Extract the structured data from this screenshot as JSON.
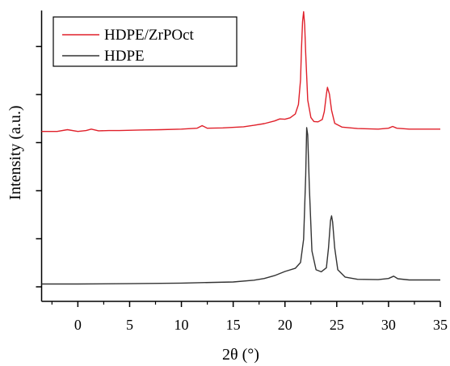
{
  "chart_data": {
    "type": "line",
    "xlabel": "2θ (°)",
    "ylabel": "Intensity (a.u.)",
    "xlim": [
      -3.5,
      35
    ],
    "xticks": [
      0,
      5,
      10,
      15,
      20,
      25,
      30,
      35
    ],
    "xtick_labels": [
      "0",
      "5",
      "10",
      "15",
      "20",
      "25",
      "30",
      "35"
    ],
    "yticks_count": 6,
    "y_tick_labels_shown": false,
    "ylim": [
      0,
      100
    ],
    "grid": false,
    "legend_position": "top-left",
    "series": [
      {
        "name": "HDPE/ZrPOct",
        "color": "#e0202a",
        "points": [
          [
            -3.5,
            57.2
          ],
          [
            -2.0,
            57.2
          ],
          [
            -1.0,
            57.8
          ],
          [
            0.0,
            57.2
          ],
          [
            0.8,
            57.5
          ],
          [
            1.3,
            58.0
          ],
          [
            2.0,
            57.4
          ],
          [
            3.0,
            57.5
          ],
          [
            4.0,
            57.5
          ],
          [
            6.0,
            57.7
          ],
          [
            8.0,
            57.8
          ],
          [
            10.0,
            58.0
          ],
          [
            11.5,
            58.3
          ],
          [
            12.0,
            59.2
          ],
          [
            12.5,
            58.3
          ],
          [
            14.0,
            58.4
          ],
          [
            16.0,
            58.8
          ],
          [
            17.0,
            59.3
          ],
          [
            18.0,
            59.9
          ],
          [
            19.0,
            60.8
          ],
          [
            19.5,
            61.5
          ],
          [
            20.0,
            61.4
          ],
          [
            20.5,
            61.9
          ],
          [
            21.0,
            63.2
          ],
          [
            21.3,
            66.5
          ],
          [
            21.5,
            75.0
          ],
          [
            21.6,
            86.0
          ],
          [
            21.7,
            95.0
          ],
          [
            21.8,
            98.5
          ],
          [
            21.9,
            94.0
          ],
          [
            22.0,
            84.0
          ],
          [
            22.2,
            68.0
          ],
          [
            22.5,
            62.0
          ],
          [
            22.8,
            60.6
          ],
          [
            23.2,
            60.5
          ],
          [
            23.6,
            61.3
          ],
          [
            23.8,
            64.0
          ],
          [
            24.0,
            70.0
          ],
          [
            24.1,
            72.4
          ],
          [
            24.3,
            70.0
          ],
          [
            24.5,
            64.5
          ],
          [
            24.8,
            60.0
          ],
          [
            25.5,
            58.7
          ],
          [
            27.0,
            58.2
          ],
          [
            29.0,
            58.0
          ],
          [
            30.0,
            58.3
          ],
          [
            30.4,
            58.9
          ],
          [
            30.8,
            58.3
          ],
          [
            32.0,
            58.0
          ],
          [
            35.0,
            58.0
          ]
        ]
      },
      {
        "name": "HDPE",
        "color": "#333333",
        "points": [
          [
            -3.5,
            4.6
          ],
          [
            0.0,
            4.6
          ],
          [
            5.0,
            4.7
          ],
          [
            10.0,
            4.9
          ],
          [
            15.0,
            5.3
          ],
          [
            17.0,
            5.9
          ],
          [
            18.0,
            6.5
          ],
          [
            19.0,
            7.5
          ],
          [
            20.0,
            8.9
          ],
          [
            21.0,
            10.0
          ],
          [
            21.5,
            12.0
          ],
          [
            21.8,
            20.0
          ],
          [
            22.0,
            42.0
          ],
          [
            22.1,
            58.5
          ],
          [
            22.2,
            56.0
          ],
          [
            22.35,
            38.0
          ],
          [
            22.6,
            16.0
          ],
          [
            23.0,
            9.5
          ],
          [
            23.5,
            8.8
          ],
          [
            24.0,
            10.2
          ],
          [
            24.2,
            17.0
          ],
          [
            24.4,
            26.5
          ],
          [
            24.5,
            28.1
          ],
          [
            24.6,
            26.0
          ],
          [
            24.8,
            17.0
          ],
          [
            25.1,
            9.5
          ],
          [
            25.8,
            7.0
          ],
          [
            27.0,
            6.2
          ],
          [
            29.0,
            6.1
          ],
          [
            30.0,
            6.5
          ],
          [
            30.5,
            7.3
          ],
          [
            30.9,
            6.4
          ],
          [
            32.0,
            6.0
          ],
          [
            35.0,
            6.0
          ]
        ]
      }
    ]
  }
}
